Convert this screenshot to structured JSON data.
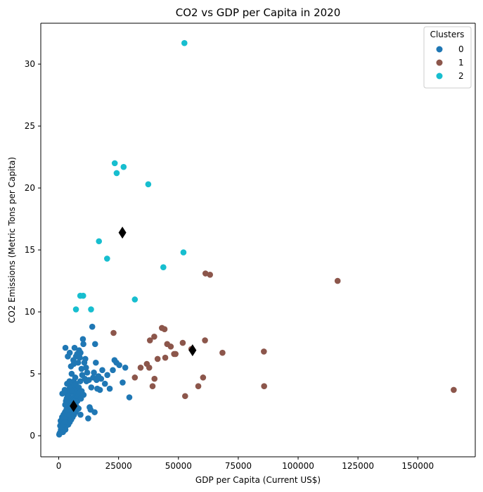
{
  "chart_data": {
    "type": "scatter",
    "title": "CO2 vs GDP per Capita in 2020",
    "xlabel": "GDP per Capita (Current US$)",
    "ylabel": "CO2 Emissions (Metric Tons per Capita)",
    "xlim": [
      -7500,
      174000
    ],
    "ylim": [
      -1.7,
      33.3
    ],
    "xticks": [
      0,
      25000,
      50000,
      75000,
      100000,
      125000,
      150000
    ],
    "xtick_labels": [
      "0",
      "25000",
      "50000",
      "75000",
      "100000",
      "125000",
      "150000"
    ],
    "yticks": [
      0,
      5,
      10,
      15,
      20,
      25,
      30
    ],
    "ytick_labels": [
      "0",
      "5",
      "10",
      "15",
      "20",
      "25",
      "30"
    ],
    "grid": false,
    "legend": {
      "title": "Clusters",
      "placement": "top-right",
      "entries": [
        {
          "label": "0",
          "color": "#1f77b4"
        },
        {
          "label": "1",
          "color": "#8c564b"
        },
        {
          "label": "2",
          "color": "#17becf"
        }
      ]
    },
    "centroid_color": "#000000",
    "series": [
      {
        "name": "0",
        "color": "#1f77b4",
        "points": [
          [
            200,
            0.1
          ],
          [
            400,
            0.2
          ],
          [
            700,
            0.3
          ],
          [
            900,
            0.5
          ],
          [
            1200,
            0.4
          ],
          [
            1500,
            0.6
          ],
          [
            1800,
            0.3
          ],
          [
            2100,
            0.7
          ],
          [
            2400,
            0.9
          ],
          [
            2800,
            0.5
          ],
          [
            3100,
            0.8
          ],
          [
            3400,
            1.0
          ],
          [
            3700,
            1.2
          ],
          [
            4000,
            0.9
          ],
          [
            4300,
            1.4
          ],
          [
            4600,
            1.1
          ],
          [
            4900,
            1.6
          ],
          [
            5200,
            1.3
          ],
          [
            5500,
            1.8
          ],
          [
            5800,
            1.5
          ],
          [
            6100,
            2.0
          ],
          [
            6400,
            1.7
          ],
          [
            6700,
            2.2
          ],
          [
            7000,
            1.9
          ],
          [
            7300,
            2.4
          ],
          [
            7600,
            2.1
          ],
          [
            800,
            1.2
          ],
          [
            1100,
            0.9
          ],
          [
            1400,
            1.5
          ],
          [
            1700,
            1.1
          ],
          [
            2000,
            1.7
          ],
          [
            2300,
            1.3
          ],
          [
            2600,
            1.9
          ],
          [
            2900,
            1.5
          ],
          [
            3200,
            2.1
          ],
          [
            3500,
            1.7
          ],
          [
            3800,
            2.3
          ],
          [
            4100,
            1.9
          ],
          [
            4400,
            2.5
          ],
          [
            4700,
            2.1
          ],
          [
            5000,
            2.7
          ],
          [
            5300,
            2.3
          ],
          [
            5600,
            2.9
          ],
          [
            5900,
            2.5
          ],
          [
            6200,
            3.1
          ],
          [
            6500,
            2.7
          ],
          [
            6800,
            3.3
          ],
          [
            7100,
            2.9
          ],
          [
            7400,
            3.5
          ],
          [
            7700,
            3.1
          ],
          [
            600,
            0.8
          ],
          [
            1000,
            1.0
          ],
          [
            1300,
            0.7
          ],
          [
            1600,
            1.3
          ],
          [
            1900,
            0.9
          ],
          [
            2200,
            1.4
          ],
          [
            2500,
            1.1
          ],
          [
            2700,
            2.5
          ],
          [
            3000,
            2.8
          ],
          [
            3300,
            3.0
          ],
          [
            3600,
            3.3
          ],
          [
            3900,
            3.6
          ],
          [
            4200,
            3.2
          ],
          [
            4500,
            3.8
          ],
          [
            4800,
            3.5
          ],
          [
            5100,
            4.0
          ],
          [
            5400,
            3.7
          ],
          [
            5700,
            4.3
          ],
          [
            6000,
            3.9
          ],
          [
            6300,
            4.4
          ],
          [
            6600,
            4.1
          ],
          [
            6900,
            4.7
          ],
          [
            7200,
            4.2
          ],
          [
            7500,
            3.8
          ],
          [
            7800,
            2.8
          ],
          [
            8100,
            3.2
          ],
          [
            8400,
            3.9
          ],
          [
            8700,
            3.5
          ],
          [
            9000,
            4.4
          ],
          [
            9300,
            3.0
          ],
          [
            1500,
            3.4
          ],
          [
            2500,
            3.7
          ],
          [
            3500,
            4.2
          ],
          [
            4500,
            4.4
          ],
          [
            5500,
            3.6
          ],
          [
            2800,
            7.1
          ],
          [
            3800,
            6.4
          ],
          [
            4600,
            6.7
          ],
          [
            5100,
            5.6
          ],
          [
            5400,
            5.0
          ],
          [
            6100,
            6.1
          ],
          [
            6300,
            5.8
          ],
          [
            6600,
            7.1
          ],
          [
            7200,
            6.4
          ],
          [
            7700,
            6.6
          ],
          [
            8100,
            5.9
          ],
          [
            8500,
            6.9
          ],
          [
            8800,
            6.3
          ],
          [
            9100,
            6.7
          ],
          [
            9500,
            5.4
          ],
          [
            9800,
            4.9
          ],
          [
            10100,
            7.8
          ],
          [
            10300,
            7.4
          ],
          [
            10700,
            5.9
          ],
          [
            11100,
            6.2
          ],
          [
            11400,
            5.5
          ],
          [
            11600,
            4.4
          ],
          [
            11900,
            5.1
          ],
          [
            12300,
            1.4
          ],
          [
            12600,
            4.5
          ],
          [
            12900,
            2.3
          ],
          [
            13300,
            2.1
          ],
          [
            13600,
            3.9
          ],
          [
            14000,
            8.8
          ],
          [
            14400,
            4.7
          ],
          [
            14700,
            5.1
          ],
          [
            15000,
            1.9
          ],
          [
            15200,
            7.4
          ],
          [
            15500,
            5.9
          ],
          [
            15800,
            4.5
          ],
          [
            16100,
            3.8
          ],
          [
            16600,
            4.8
          ],
          [
            17200,
            3.7
          ],
          [
            17700,
            4.6
          ],
          [
            18200,
            5.3
          ],
          [
            19300,
            4.2
          ],
          [
            20300,
            4.9
          ],
          [
            21300,
            3.8
          ],
          [
            22600,
            5.3
          ],
          [
            23300,
            6.1
          ],
          [
            24100,
            5.9
          ],
          [
            25300,
            5.7
          ],
          [
            26700,
            4.3
          ],
          [
            27800,
            5.5
          ],
          [
            29500,
            3.1
          ],
          [
            8300,
            2.2
          ],
          [
            9100,
            1.7
          ],
          [
            9600,
            3.6
          ],
          [
            10400,
            3.3
          ],
          [
            10900,
            4.6
          ]
        ]
      },
      {
        "name": "1",
        "color": "#8c564b",
        "points": [
          [
            22900,
            8.3
          ],
          [
            31800,
            4.7
          ],
          [
            34200,
            5.5
          ],
          [
            36800,
            5.8
          ],
          [
            37800,
            5.5
          ],
          [
            38100,
            7.7
          ],
          [
            39200,
            4.0
          ],
          [
            39900,
            8.0
          ],
          [
            40000,
            4.6
          ],
          [
            41300,
            6.2
          ],
          [
            43100,
            8.7
          ],
          [
            44200,
            8.6
          ],
          [
            44500,
            6.3
          ],
          [
            45300,
            7.4
          ],
          [
            46800,
            7.2
          ],
          [
            48200,
            6.6
          ],
          [
            48800,
            6.6
          ],
          [
            51800,
            7.5
          ],
          [
            52800,
            3.2
          ],
          [
            55400,
            7.0
          ],
          [
            58300,
            4.0
          ],
          [
            60300,
            4.7
          ],
          [
            61100,
            7.7
          ],
          [
            61300,
            13.1
          ],
          [
            63200,
            13.0
          ],
          [
            68400,
            6.7
          ],
          [
            85700,
            6.8
          ],
          [
            85800,
            4.0
          ],
          [
            116500,
            12.5
          ],
          [
            165000,
            3.7
          ]
        ]
      },
      {
        "name": "2",
        "color": "#17becf",
        "points": [
          [
            7200,
            10.2
          ],
          [
            9000,
            11.3
          ],
          [
            10200,
            11.3
          ],
          [
            13500,
            10.2
          ],
          [
            16800,
            15.7
          ],
          [
            20200,
            14.3
          ],
          [
            23400,
            22.0
          ],
          [
            24200,
            21.2
          ],
          [
            27100,
            21.7
          ],
          [
            31800,
            11.0
          ],
          [
            37400,
            20.3
          ],
          [
            43700,
            13.6
          ],
          [
            52100,
            14.8
          ],
          [
            52500,
            31.7
          ]
        ]
      }
    ],
    "centroids": [
      [
        6200,
        2.4
      ],
      [
        26600,
        16.4
      ],
      [
        55900,
        6.9
      ]
    ]
  }
}
